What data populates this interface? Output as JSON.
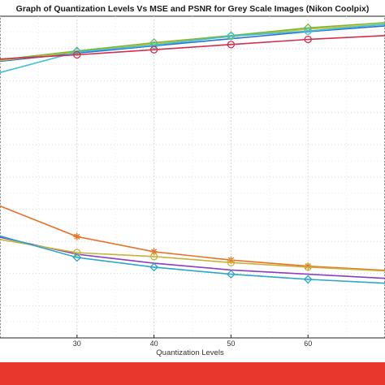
{
  "chart_data": {
    "type": "line",
    "title": "Graph of Quantization Levels Vs MSE and PSNR for Grey Scale Images (Nikon Coolpix)",
    "xlabel": "Quantization Levels",
    "ylabel": "",
    "x_ticks": [
      30,
      40,
      50,
      60
    ],
    "xlim": [
      20,
      70
    ],
    "ylim": [
      0,
      100
    ],
    "grid": true,
    "series": [
      {
        "color": "#2f6fd6",
        "marker": "none",
        "values": [
          [
            20,
            86.0
          ],
          [
            30,
            88.5
          ],
          [
            40,
            90.8
          ],
          [
            50,
            93.0
          ],
          [
            60,
            95.2
          ],
          [
            70,
            97.0
          ]
        ]
      },
      {
        "color": "#c9c13a",
        "marker": "none",
        "values": [
          [
            20,
            86.2
          ],
          [
            30,
            88.9
          ],
          [
            40,
            91.4
          ],
          [
            50,
            93.7
          ],
          [
            60,
            96.0
          ],
          [
            70,
            97.5
          ]
        ]
      },
      {
        "color": "#7db63a",
        "marker": "diamond",
        "values": [
          [
            20,
            86.5
          ],
          [
            30,
            89.2
          ],
          [
            40,
            91.8
          ],
          [
            50,
            94.0
          ],
          [
            60,
            96.4
          ],
          [
            70,
            98.0
          ]
        ]
      },
      {
        "color": "#3cc1d6",
        "marker": "circle",
        "values": [
          [
            20,
            82.5
          ],
          [
            30,
            88.9
          ],
          [
            40,
            91.0
          ],
          [
            50,
            93.8
          ],
          [
            60,
            95.4
          ],
          [
            70,
            97.5
          ]
        ]
      },
      {
        "color": "#d22e4f",
        "marker": "circle",
        "values": [
          [
            20,
            86.7
          ],
          [
            30,
            88.0
          ],
          [
            40,
            89.6
          ],
          [
            50,
            91.2
          ],
          [
            60,
            92.8
          ],
          [
            70,
            94.0
          ]
        ]
      },
      {
        "color": "#e8732a",
        "marker": "star",
        "values": [
          [
            20,
            41.0
          ],
          [
            30,
            31.5
          ],
          [
            40,
            26.8
          ],
          [
            50,
            24.2
          ],
          [
            60,
            22.3
          ],
          [
            70,
            21.0
          ]
        ]
      },
      {
        "color": "#8b3fbf",
        "marker": "none",
        "values": [
          [
            20,
            31.3
          ],
          [
            30,
            26.0
          ],
          [
            40,
            23.2
          ],
          [
            50,
            21.1
          ],
          [
            60,
            19.8
          ],
          [
            70,
            18.5
          ]
        ]
      },
      {
        "color": "#c9b23a",
        "marker": "circle",
        "values": [
          [
            20,
            30.6
          ],
          [
            30,
            26.5
          ],
          [
            40,
            25.3
          ],
          [
            50,
            23.4
          ],
          [
            60,
            22.0
          ],
          [
            70,
            20.8
          ]
        ]
      },
      {
        "color": "#2ca7c9",
        "marker": "diamond",
        "values": [
          [
            20,
            31.7
          ],
          [
            30,
            25.0
          ],
          [
            40,
            22.0
          ],
          [
            50,
            19.8
          ],
          [
            60,
            18.2
          ],
          [
            70,
            17.0
          ]
        ]
      }
    ]
  }
}
